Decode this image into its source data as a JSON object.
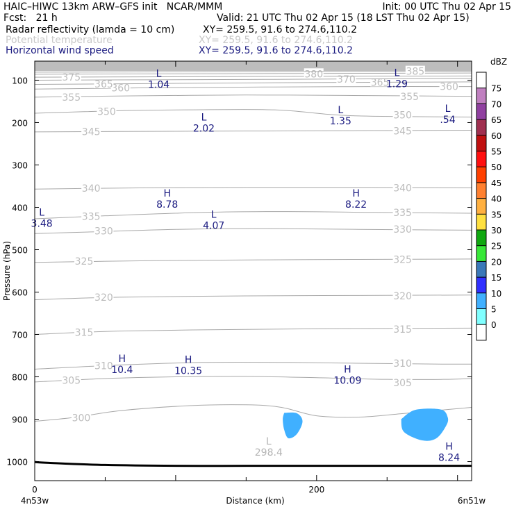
{
  "header": {
    "title_left": "HAIC–HIWC 13km ARW–GFS init   NCAR/MMM",
    "init": "Init: 00 UTC Thu 02 Apr 15",
    "fcst": "Fcst:   21 h",
    "valid": "Valid: 21 UTC Thu 02 Apr 15 (18 LST Thu 02 Apr 15)",
    "fields": [
      {
        "name": "Radar reflectivity (lamda = 10 cm)",
        "xy": "XY= 259.5, 91.6 to 274.6,110.2",
        "color": "#000000"
      },
      {
        "name": "Potential temperature",
        "xy": "XY= 259.5, 91.6 to 274.6,110.2",
        "color": "#c8c8c8"
      },
      {
        "name": "Horizontal wind speed",
        "xy": "XY= 259.5, 91.6 to 274.6,110.2",
        "color": "#1a1a80"
      }
    ]
  },
  "chart_data": {
    "type": "cross-section",
    "ylabel": "Pressure (hPa)",
    "xlabel": "Distance (km)",
    "x_ticks": [
      {
        "value": 0,
        "label": "0"
      },
      {
        "value": 200,
        "label": "200"
      }
    ],
    "x_end_labels": {
      "left": "4n53w",
      "right": "6n51w"
    },
    "xlim": [
      0,
      310
    ],
    "ylim": [
      1045,
      55
    ],
    "y_ticks": [
      100,
      200,
      300,
      400,
      500,
      600,
      700,
      800,
      900,
      1000
    ],
    "colorbar": {
      "unit": "dBZ",
      "levels": [
        0,
        5,
        10,
        15,
        20,
        25,
        30,
        35,
        40,
        45,
        50,
        55,
        60,
        65,
        70,
        75
      ],
      "colors": [
        "#ffffff",
        "#80ffff",
        "#40b0ff",
        "#3030ff",
        "#3a78b8",
        "#38e838",
        "#10a810",
        "#ffe040",
        "#ffb040",
        "#ff8030",
        "#ff4000",
        "#ff1010",
        "#c01010",
        "#a03050",
        "#9040a0",
        "#c080c0",
        "#ffffff"
      ]
    },
    "theta_contours": [
      {
        "value": 300,
        "points": [
          [
            0,
            905
          ],
          [
            30,
            895
          ],
          [
            60,
            880
          ],
          [
            110,
            868
          ],
          [
            150,
            866
          ],
          [
            175,
            872
          ],
          [
            200,
            892
          ],
          [
            230,
            895
          ],
          [
            260,
            887
          ],
          [
            290,
            878
          ],
          [
            310,
            872
          ]
        ],
        "labels": [
          [
            33,
            897
          ]
        ]
      },
      {
        "value": 305,
        "points": [
          [
            0,
            812
          ],
          [
            50,
            804
          ],
          [
            100,
            800
          ],
          [
            150,
            799
          ],
          [
            200,
            802
          ],
          [
            250,
            806
          ],
          [
            290,
            806
          ],
          [
            310,
            804
          ]
        ],
        "labels": [
          [
            26,
            808
          ],
          [
            261,
            814
          ]
        ]
      },
      {
        "value": 310,
        "points": [
          [
            0,
            782
          ],
          [
            60,
            772
          ],
          [
            120,
            766
          ],
          [
            180,
            766
          ],
          [
            230,
            768
          ],
          [
            290,
            770
          ],
          [
            310,
            770
          ]
        ],
        "labels": [
          [
            49,
            774
          ],
          [
            261,
            768
          ]
        ]
      },
      {
        "value": 315,
        "points": [
          [
            0,
            700
          ],
          [
            60,
            692
          ],
          [
            150,
            688
          ],
          [
            230,
            686
          ],
          [
            310,
            685
          ]
        ],
        "labels": [
          [
            35,
            695
          ],
          [
            261,
            688
          ]
        ]
      },
      {
        "value": 320,
        "points": [
          [
            0,
            618
          ],
          [
            60,
            612
          ],
          [
            150,
            609
          ],
          [
            230,
            608
          ],
          [
            310,
            607
          ]
        ],
        "labels": [
          [
            49,
            612
          ],
          [
            261,
            609
          ]
        ]
      },
      {
        "value": 325,
        "points": [
          [
            0,
            530
          ],
          [
            80,
            526
          ],
          [
            160,
            524
          ],
          [
            230,
            523
          ],
          [
            310,
            522
          ]
        ],
        "labels": [
          [
            35,
            527
          ],
          [
            261,
            523
          ]
        ]
      },
      {
        "value": 330,
        "points": [
          [
            0,
            462
          ],
          [
            40,
            458
          ],
          [
            100,
            452
          ],
          [
            160,
            450
          ],
          [
            230,
            452
          ],
          [
            310,
            454
          ]
        ],
        "labels": [
          [
            49,
            456
          ],
          [
            261,
            452
          ]
        ]
      },
      {
        "value": 335,
        "points": [
          [
            0,
            427
          ],
          [
            50,
            420
          ],
          [
            120,
            412
          ],
          [
            180,
            410
          ],
          [
            240,
            412
          ],
          [
            310,
            414
          ]
        ],
        "labels": [
          [
            40,
            421
          ],
          [
            261,
            412
          ]
        ]
      },
      {
        "value": 340,
        "points": [
          [
            0,
            357
          ],
          [
            80,
            354
          ],
          [
            160,
            353
          ],
          [
            230,
            353
          ],
          [
            310,
            354
          ]
        ],
        "labels": [
          [
            40,
            355
          ],
          [
            261,
            354
          ]
        ]
      },
      {
        "value": 345,
        "points": [
          [
            0,
            222
          ],
          [
            60,
            221
          ],
          [
            150,
            220
          ],
          [
            230,
            219
          ],
          [
            310,
            218
          ]
        ],
        "labels": [
          [
            40,
            221
          ],
          [
            261,
            220
          ]
        ]
      },
      {
        "value": 350,
        "points": [
          [
            0,
            178
          ],
          [
            60,
            172
          ],
          [
            110,
            170
          ],
          [
            170,
            170
          ],
          [
            210,
            181
          ],
          [
            240,
            185
          ],
          [
            310,
            187
          ]
        ],
        "labels": [
          [
            51,
            174
          ],
          [
            261,
            182
          ]
        ]
      },
      {
        "value": 355,
        "points": [
          [
            0,
            140
          ],
          [
            70,
            137
          ],
          [
            150,
            135
          ],
          [
            220,
            136
          ],
          [
            310,
            138
          ]
        ],
        "labels": [
          [
            26,
            140
          ],
          [
            266,
            139
          ]
        ]
      },
      {
        "value": 360,
        "points": [
          [
            0,
            121
          ],
          [
            80,
            118
          ],
          [
            170,
            116
          ],
          [
            240,
            115
          ],
          [
            310,
            115
          ]
        ],
        "labels": [
          [
            61,
            118
          ],
          [
            294,
            115
          ]
        ]
      },
      {
        "value": 365,
        "points": [
          [
            0,
            110
          ],
          [
            80,
            108
          ],
          [
            170,
            106
          ],
          [
            240,
            105
          ],
          [
            310,
            104
          ]
        ],
        "labels": [
          [
            49,
            109
          ],
          [
            245,
            105
          ]
        ]
      },
      {
        "value": 370,
        "points": [
          [
            0,
            100
          ],
          [
            80,
            99
          ],
          [
            170,
            98
          ],
          [
            230,
            97
          ],
          [
            310,
            96
          ]
        ],
        "labels": [
          [
            221,
            98
          ]
        ]
      },
      {
        "value": 375,
        "points": [
          [
            0,
            93
          ],
          [
            80,
            92
          ],
          [
            170,
            91
          ],
          [
            310,
            90
          ]
        ],
        "labels": [
          [
            26,
            93
          ]
        ]
      },
      {
        "value": 380,
        "points": [
          [
            0,
            86
          ],
          [
            100,
            85
          ],
          [
            200,
            84
          ],
          [
            310,
            83
          ]
        ],
        "labels": [
          [
            198,
            85
          ]
        ]
      },
      {
        "value": 385,
        "points": [
          [
            0,
            81
          ],
          [
            150,
            80
          ],
          [
            310,
            79
          ]
        ],
        "labels": [
          [
            270,
            79
          ]
        ]
      }
    ],
    "extrema": [
      {
        "kind": "L",
        "value": "1.04",
        "x": 88,
        "p": 92,
        "field": "wind"
      },
      {
        "kind": "L",
        "value": "1.29",
        "x": 257,
        "p": 90,
        "field": "wind"
      },
      {
        "kind": "L",
        "value": "2.02",
        "x": 120,
        "p": 195,
        "field": "wind"
      },
      {
        "kind": "L",
        "value": "1.35",
        "x": 217,
        "p": 178,
        "field": "wind"
      },
      {
        "kind": "L",
        "value": ".54",
        "x": 293,
        "p": 175,
        "field": "wind"
      },
      {
        "kind": "L",
        "value": "3.48",
        "x": 5,
        "p": 420,
        "field": "wind"
      },
      {
        "kind": "H",
        "value": "8.78",
        "x": 94,
        "p": 375,
        "field": "wind"
      },
      {
        "kind": "H",
        "value": "8.22",
        "x": 228,
        "p": 375,
        "field": "wind"
      },
      {
        "kind": "L",
        "value": "4.07",
        "x": 127,
        "p": 425,
        "field": "wind"
      },
      {
        "kind": "H",
        "value": "10.4",
        "x": 62,
        "p": 765,
        "field": "wind"
      },
      {
        "kind": "H",
        "value": "10.35",
        "x": 109,
        "p": 767,
        "field": "wind"
      },
      {
        "kind": "H",
        "value": "10.09",
        "x": 222,
        "p": 790,
        "field": "wind"
      },
      {
        "kind": "L",
        "value": "298.4",
        "x": 166,
        "p": 960,
        "field": "theta"
      },
      {
        "kind": "H",
        "value": "8.24",
        "x": 294,
        "p": 972,
        "field": "wind"
      }
    ],
    "reflectivity_cells": [
      {
        "dbz_min": 5,
        "dbz_max": 10,
        "outline": [
          [
            177,
            885
          ],
          [
            186,
            886
          ],
          [
            190,
            905
          ],
          [
            186,
            935
          ],
          [
            180,
            945
          ],
          [
            177,
            925
          ],
          [
            176,
            900
          ]
        ]
      },
      {
        "dbz_min": 5,
        "dbz_max": 10,
        "outline": [
          [
            260,
            900
          ],
          [
            270,
            878
          ],
          [
            288,
            877
          ],
          [
            293,
            895
          ],
          [
            292,
            915
          ],
          [
            285,
            945
          ],
          [
            275,
            950
          ],
          [
            262,
            930
          ]
        ]
      }
    ],
    "terrain": [
      [
        0,
        1001
      ],
      [
        10,
        1003
      ],
      [
        50,
        1008
      ],
      [
        100,
        1010
      ],
      [
        150,
        1010
      ],
      [
        200,
        1010
      ],
      [
        250,
        1010
      ],
      [
        310,
        1010
      ]
    ]
  }
}
